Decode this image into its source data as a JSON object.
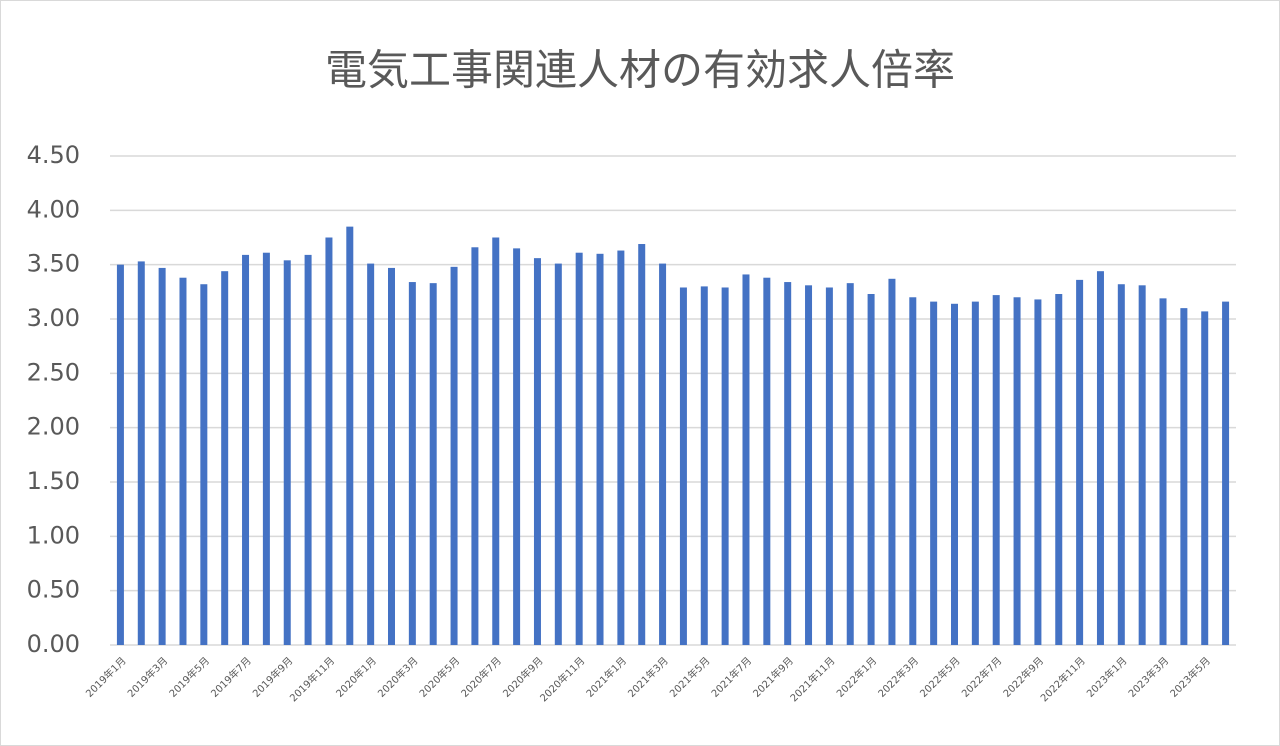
{
  "chart_data": {
    "type": "bar",
    "title": "電気工事関連人材の有効求人倍率",
    "categories": [
      "2019年1月",
      null,
      "2019年3月",
      null,
      "2019年5月",
      null,
      "2019年7月",
      null,
      "2019年9月",
      null,
      "2019年11月",
      null,
      "2020年1月",
      null,
      "2020年3月",
      null,
      "2020年5月",
      null,
      "2020年7月",
      null,
      "2020年9月",
      null,
      "2020年11月",
      null,
      "2021年1月",
      null,
      "2021年3月",
      null,
      "2021年5月",
      null,
      "2021年7月",
      null,
      "2021年9月",
      null,
      "2021年11月",
      null,
      "2022年1月",
      null,
      "2022年3月",
      null,
      "2022年5月",
      null,
      "2022年7月",
      null,
      "2022年9月",
      null,
      "2022年11月",
      null,
      "2023年1月",
      null,
      "2023年3月",
      null,
      "2023年5月",
      null
    ],
    "values": [
      3.5,
      3.53,
      3.47,
      3.38,
      3.32,
      3.44,
      3.59,
      3.61,
      3.54,
      3.59,
      3.75,
      3.85,
      3.51,
      3.47,
      3.34,
      3.33,
      3.48,
      3.66,
      3.75,
      3.65,
      3.56,
      3.51,
      3.61,
      3.6,
      3.63,
      3.69,
      3.51,
      3.29,
      3.3,
      3.29,
      3.41,
      3.38,
      3.34,
      3.31,
      3.29,
      3.33,
      3.23,
      3.37,
      3.2,
      3.16,
      3.14,
      3.16,
      3.22,
      3.2,
      3.18,
      3.23,
      3.36,
      3.44,
      3.32,
      3.31,
      3.19,
      3.1,
      3.07,
      3.16
    ],
    "color": "#4472c4",
    "ylim": [
      0,
      4.5
    ],
    "yticks": [
      {
        "value": 0,
        "label": "0.00"
      },
      {
        "value": 0.5,
        "label": "0.50"
      },
      {
        "value": 1,
        "label": "1.00"
      },
      {
        "value": 1.5,
        "label": "1.50"
      },
      {
        "value": 2,
        "label": "2.00"
      },
      {
        "value": 2.5,
        "label": "2.50"
      },
      {
        "value": 3,
        "label": "3.00"
      },
      {
        "value": 3.5,
        "label": "3.50"
      },
      {
        "value": 4,
        "label": "4.00"
      },
      {
        "value": 4.5,
        "label": "4.50"
      }
    ],
    "grid": true
  }
}
